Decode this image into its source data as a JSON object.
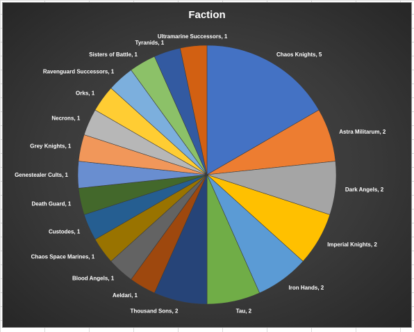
{
  "chart_data": {
    "type": "pie",
    "title": "Faction",
    "legend": "none",
    "slices": [
      {
        "label": "Chaos Knights",
        "value": 5,
        "color": "#4472c4"
      },
      {
        "label": "Astra Militarum",
        "value": 2,
        "color": "#ed7d31"
      },
      {
        "label": "Dark Angels",
        "value": 2,
        "color": "#a5a5a5"
      },
      {
        "label": "Imperial Knights",
        "value": 2,
        "color": "#ffc000"
      },
      {
        "label": "Iron Hands",
        "value": 2,
        "color": "#5b9bd5"
      },
      {
        "label": "Tau",
        "value": 2,
        "color": "#70ad47"
      },
      {
        "label": "Thousand Sons",
        "value": 2,
        "color": "#264478"
      },
      {
        "label": "Aeldari",
        "value": 1,
        "color": "#9e480e"
      },
      {
        "label": "Blood Angels",
        "value": 1,
        "color": "#636363"
      },
      {
        "label": "Chaos Space Marines",
        "value": 1,
        "color": "#997300"
      },
      {
        "label": "Custodes",
        "value": 1,
        "color": "#255e91"
      },
      {
        "label": "Death Guard",
        "value": 1,
        "color": "#43682b"
      },
      {
        "label": "Genestealer Cults",
        "value": 1,
        "color": "#698ed0"
      },
      {
        "label": "Grey Knights",
        "value": 1,
        "color": "#f1975a"
      },
      {
        "label": "Necrons",
        "value": 1,
        "color": "#b7b7b7"
      },
      {
        "label": "Orks",
        "value": 1,
        "color": "#ffcd33"
      },
      {
        "label": "Ravenguard Successors",
        "value": 1,
        "color": "#7cafdd"
      },
      {
        "label": "Sisters of Battle",
        "value": 1,
        "color": "#8cc168"
      },
      {
        "label": "Tyranids",
        "value": 1,
        "color": "#335aa1"
      },
      {
        "label": "Ultramarine Successors",
        "value": 1,
        "color": "#d26012"
      }
    ]
  }
}
